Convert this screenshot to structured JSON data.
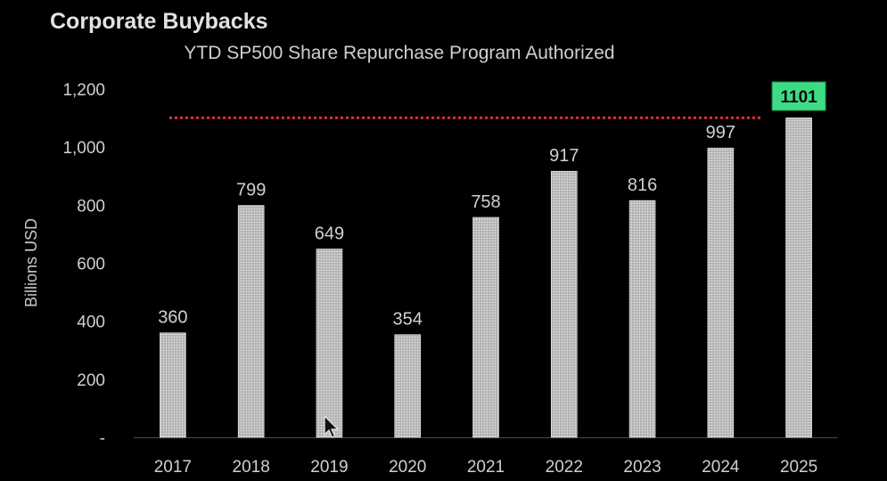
{
  "chart_data": {
    "type": "bar",
    "title": "Corporate Buybacks",
    "subtitle": "YTD SP500 Share Repurchase Program Authorized",
    "xlabel": "",
    "ylabel": "Billions USD",
    "categories": [
      "2017",
      "2018",
      "2019",
      "2020",
      "2021",
      "2022",
      "2023",
      "2024",
      "2025"
    ],
    "values": [
      360,
      799,
      649,
      354,
      758,
      917,
      816,
      997,
      1101
    ],
    "data_labels": [
      "360",
      "799",
      "649",
      "354",
      "758",
      "917",
      "816",
      "997",
      "1101"
    ],
    "y_ticks": [
      0,
      200,
      400,
      600,
      800,
      1000,
      1200
    ],
    "y_tick_labels": [
      "-",
      "200",
      "400",
      "600",
      "800",
      "1,000",
      "1,200"
    ],
    "ylim": [
      0,
      1200
    ],
    "grid": false,
    "reference_line": {
      "value": 1101,
      "style": "dotted",
      "color": "#e03030"
    },
    "highlight": {
      "category": "2025",
      "label": "1101",
      "color": "#3ddc84"
    },
    "bar_color": "#cfcfcf",
    "text_color": "#d0d0d0"
  }
}
